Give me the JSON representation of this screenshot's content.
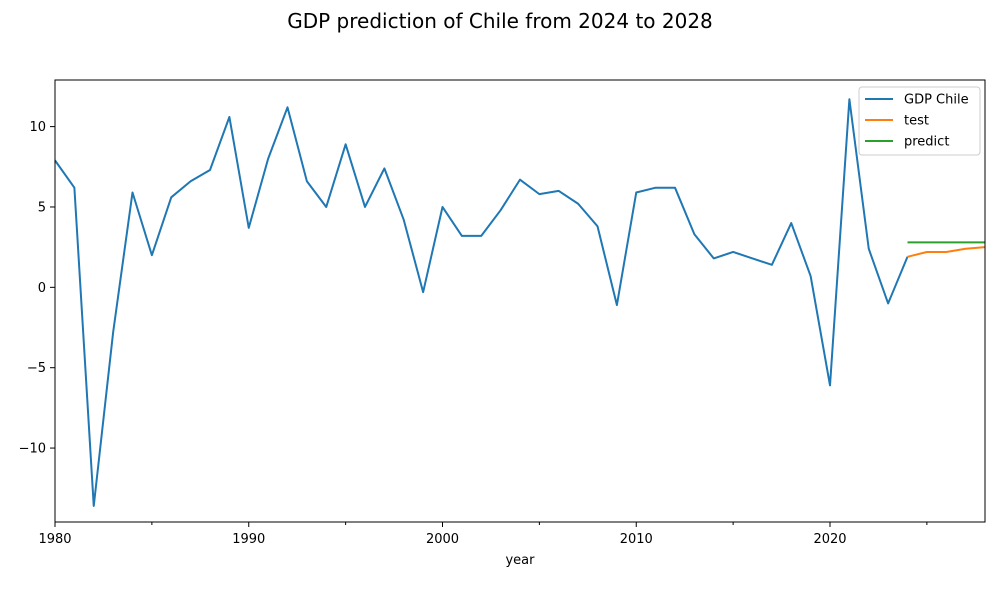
{
  "chart_data": {
    "type": "line",
    "title": "GDP prediction of Chile from 2024 to 2028",
    "xlabel": "year",
    "ylabel": "",
    "xlim": [
      1980,
      2028
    ],
    "ylim": [
      -14.6,
      12.9
    ],
    "x_ticks_major": [
      1980,
      1990,
      2000,
      2010,
      2020
    ],
    "x_ticks_minor": [
      1985,
      1995,
      2005,
      2015,
      2025
    ],
    "y_ticks": [
      -10,
      -5,
      0,
      5,
      10
    ],
    "grid": false,
    "legend_position": "top-right",
    "series": [
      {
        "name": "GDP Chile",
        "color": "#1f77b4",
        "x": [
          1980,
          1981,
          1982,
          1983,
          1984,
          1985,
          1986,
          1987,
          1988,
          1989,
          1990,
          1991,
          1992,
          1993,
          1994,
          1995,
          1996,
          1997,
          1998,
          1999,
          2000,
          2001,
          2002,
          2003,
          2004,
          2005,
          2006,
          2007,
          2008,
          2009,
          2010,
          2011,
          2012,
          2013,
          2014,
          2015,
          2016,
          2017,
          2018,
          2019,
          2020,
          2021,
          2022,
          2023,
          2024
        ],
        "values": [
          7.9,
          6.2,
          -13.6,
          -2.8,
          5.9,
          2.0,
          5.6,
          6.6,
          7.3,
          10.6,
          3.7,
          8.0,
          11.2,
          6.6,
          5.0,
          8.9,
          5.0,
          7.4,
          4.2,
          -0.3,
          5.0,
          3.2,
          3.2,
          4.8,
          6.7,
          5.8,
          6.0,
          5.2,
          3.8,
          -1.1,
          5.9,
          6.2,
          6.2,
          3.3,
          1.8,
          2.2,
          1.8,
          1.4,
          4.0,
          0.7,
          -6.1,
          11.7,
          2.4,
          -1.0,
          1.9
        ]
      },
      {
        "name": "test",
        "color": "#ff7f0e",
        "x": [
          2024,
          2025,
          2026,
          2027,
          2028
        ],
        "values": [
          1.9,
          2.2,
          2.2,
          2.4,
          2.5
        ]
      },
      {
        "name": "predict",
        "color": "#2ca02c",
        "x": [
          2024,
          2025,
          2026,
          2027,
          2028
        ],
        "values": [
          2.8,
          2.8,
          2.8,
          2.8,
          2.8
        ]
      }
    ]
  }
}
